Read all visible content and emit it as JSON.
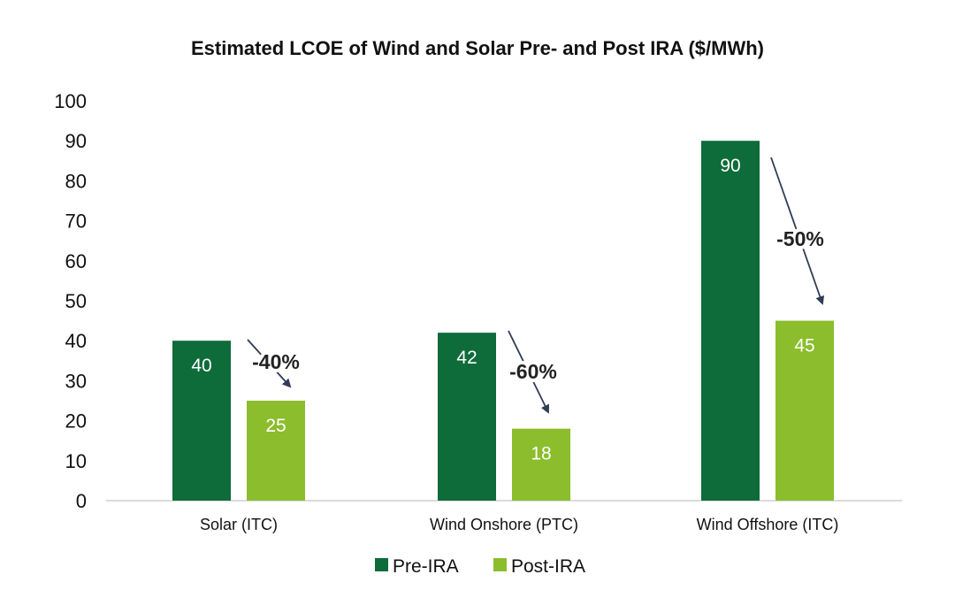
{
  "chart_data": {
    "type": "bar",
    "title": "Estimated LCOE of Wind and Solar Pre- and Post IRA ($/MWh)",
    "xlabel": "",
    "ylabel": "",
    "categories": [
      "Solar (ITC)",
      "Wind Onshore (PTC)",
      "Wind Offshore (ITC)"
    ],
    "series": [
      {
        "name": "Pre-IRA",
        "values": [
          40,
          42,
          90
        ],
        "color": "#0e6b3a"
      },
      {
        "name": "Post-IRA",
        "values": [
          25,
          18,
          45
        ],
        "color": "#8bbd2c"
      }
    ],
    "ylim": [
      0,
      100
    ],
    "yticks": [
      "0",
      "10",
      "20",
      "30",
      "40",
      "50",
      "60",
      "70",
      "80",
      "90",
      "100"
    ],
    "bar_labels": [
      [
        "40",
        "42",
        "90"
      ],
      [
        "25",
        "18",
        "45"
      ]
    ],
    "annotations": [
      "-40%",
      "-60%",
      "-50%"
    ],
    "annotation_color": "#2e3c55",
    "grid": false,
    "legend": "bottom"
  }
}
